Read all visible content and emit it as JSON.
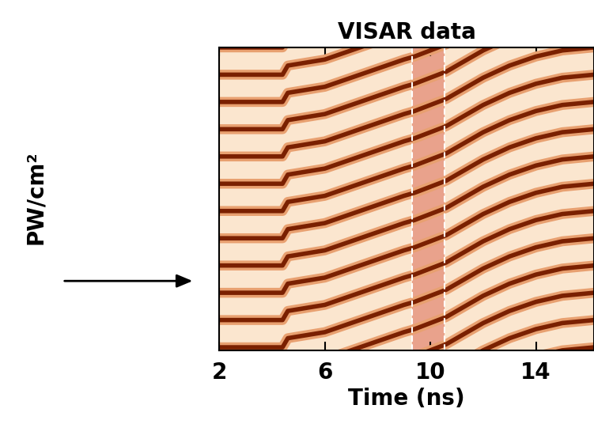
{
  "chart_data": {
    "type": "fringe",
    "title": "VISAR data",
    "x_label": "Time (ns)",
    "y_label": "PW/cm²",
    "xlim": [
      2,
      16.2
    ],
    "xticks": [
      2,
      6,
      10,
      14
    ],
    "ylim": [
      0,
      10
    ],
    "tick_labels": "x",
    "color": "#7a2000",
    "fringes": {
      "offsets": [
        -3.5,
        -2.6,
        -1.7,
        -0.8,
        0.1,
        1.0,
        1.9,
        2.8,
        3.7,
        4.6,
        5.5,
        6.4,
        7.3,
        8.2,
        9.1,
        10.0
      ],
      "x": [
        2,
        4.4,
        4.6,
        6,
        7,
        8,
        9,
        9.4,
        10.6,
        11,
        12,
        13,
        14,
        15,
        16.2
      ],
      "shift": [
        0,
        0,
        0.3,
        0.5,
        0.8,
        1.1,
        1.4,
        1.5,
        1.9,
        2.1,
        2.6,
        3.0,
        3.3,
        3.5,
        3.6
      ]
    },
    "highlight": {
      "range": [
        9.3,
        10.55
      ],
      "color": "#d9604a"
    }
  }
}
